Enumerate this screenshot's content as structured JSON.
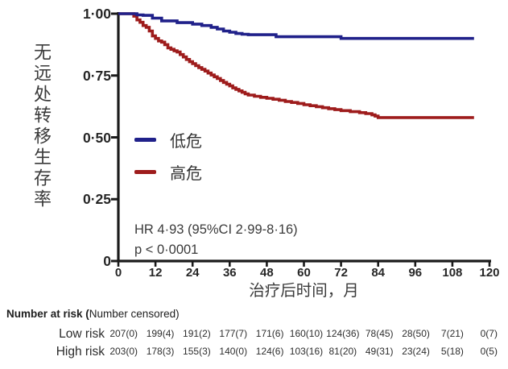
{
  "figure": {
    "y_axis_title": "无远处转移生存率",
    "x_axis_title": "治疗后时间，月",
    "hr_text": "HR 4·93 (95%CI 2·99-8·16)",
    "p_value_text": "p < 0·0001",
    "colors": {
      "low_risk": "#20218a",
      "high_risk": "#9e1c1c",
      "axis": "#1b1b1b",
      "text": "#3a3a3a"
    }
  },
  "chart_data": {
    "type": "line",
    "subtype": "kaplan_meier_step",
    "title": "",
    "xlabel": "治疗后时间，月",
    "ylabel": "无远处转移生存率",
    "xlim": [
      0,
      120
    ],
    "ylim": [
      0,
      1.0
    ],
    "xticks": [
      0,
      12,
      24,
      36,
      48,
      60,
      72,
      84,
      96,
      108,
      120
    ],
    "yticks": [
      {
        "v": 1.0,
        "label": "1·00"
      },
      {
        "v": 0.75,
        "label": "0·75"
      },
      {
        "v": 0.5,
        "label": "0·50"
      },
      {
        "v": 0.25,
        "label": "0·25"
      },
      {
        "v": 0.0,
        "label": "0"
      }
    ],
    "grid": false,
    "legend_position": "center-left-inside",
    "annotations": [
      "HR 4·93 (95%CI 2·99-8·16)",
      "p < 0·0001"
    ],
    "series": [
      {
        "name": "低危",
        "color": "#20218a",
        "points": [
          [
            0,
            1.0
          ],
          [
            5,
            1.0
          ],
          [
            6,
            0.995
          ],
          [
            8,
            0.993
          ],
          [
            11,
            0.982
          ],
          [
            14,
            0.971
          ],
          [
            19,
            0.964
          ],
          [
            24,
            0.958
          ],
          [
            27,
            0.952
          ],
          [
            30,
            0.945
          ],
          [
            32,
            0.938
          ],
          [
            34,
            0.93
          ],
          [
            36,
            0.925
          ],
          [
            38,
            0.92
          ],
          [
            40,
            0.917
          ],
          [
            42,
            0.915
          ],
          [
            51,
            0.907
          ],
          [
            72,
            0.9
          ],
          [
            115,
            0.9
          ]
        ]
      },
      {
        "name": "高危",
        "color": "#9e1c1c",
        "points": [
          [
            0,
            1.0
          ],
          [
            4,
            1.0
          ],
          [
            5,
            0.99
          ],
          [
            6,
            0.975
          ],
          [
            7,
            0.965
          ],
          [
            8,
            0.952
          ],
          [
            9,
            0.945
          ],
          [
            10,
            0.93
          ],
          [
            11,
            0.91
          ],
          [
            12,
            0.9
          ],
          [
            13,
            0.89
          ],
          [
            14,
            0.885
          ],
          [
            15,
            0.875
          ],
          [
            16,
            0.862
          ],
          [
            17,
            0.856
          ],
          [
            18,
            0.85
          ],
          [
            19,
            0.845
          ],
          [
            20,
            0.835
          ],
          [
            21,
            0.825
          ],
          [
            22,
            0.815
          ],
          [
            23,
            0.806
          ],
          [
            24,
            0.798
          ],
          [
            25,
            0.79
          ],
          [
            26,
            0.782
          ],
          [
            27,
            0.775
          ],
          [
            28,
            0.768
          ],
          [
            29,
            0.76
          ],
          [
            30,
            0.752
          ],
          [
            31,
            0.745
          ],
          [
            32,
            0.738
          ],
          [
            33,
            0.73
          ],
          [
            34,
            0.722
          ],
          [
            35,
            0.715
          ],
          [
            36,
            0.708
          ],
          [
            37,
            0.7
          ],
          [
            38,
            0.694
          ],
          [
            39,
            0.688
          ],
          [
            40,
            0.682
          ],
          [
            41,
            0.676
          ],
          [
            42,
            0.671
          ],
          [
            44,
            0.666
          ],
          [
            46,
            0.662
          ],
          [
            48,
            0.658
          ],
          [
            50,
            0.654
          ],
          [
            52,
            0.65
          ],
          [
            54,
            0.645
          ],
          [
            56,
            0.641
          ],
          [
            58,
            0.637
          ],
          [
            60,
            0.632
          ],
          [
            62,
            0.628
          ],
          [
            64,
            0.624
          ],
          [
            66,
            0.62
          ],
          [
            68,
            0.616
          ],
          [
            70,
            0.612
          ],
          [
            72,
            0.608
          ],
          [
            75,
            0.604
          ],
          [
            78,
            0.6
          ],
          [
            80,
            0.596
          ],
          [
            82,
            0.591
          ],
          [
            83,
            0.586
          ],
          [
            84,
            0.58
          ],
          [
            115,
            0.58
          ]
        ]
      }
    ]
  },
  "risk_table": {
    "title_bold": "Number at risk (",
    "title_normal": "Number censored)",
    "rows": [
      {
        "label": "Low risk",
        "values": [
          "207(0)",
          "199(4)",
          "191(2)",
          "177(7)",
          "171(6)",
          "160(10)",
          "124(36)",
          "78(45)",
          "28(50)",
          "7(21)",
          "0(7)"
        ]
      },
      {
        "label": "High risk",
        "values": [
          "203(0)",
          "178(3)",
          "155(3)",
          "140(0)",
          "124(6)",
          "103(16)",
          "81(20)",
          "49(31)",
          "23(24)",
          "5(18)",
          "0(5)"
        ]
      }
    ]
  }
}
